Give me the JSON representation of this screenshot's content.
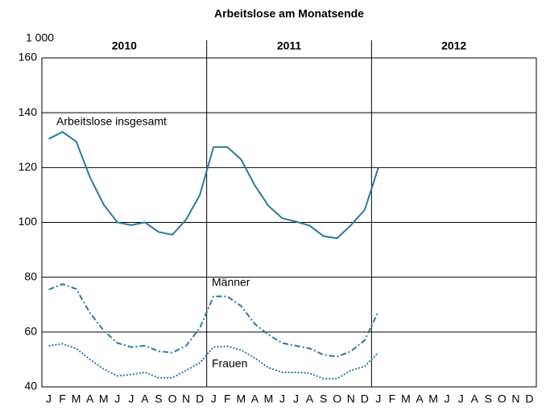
{
  "chart_data": {
    "type": "line",
    "title": "Arbeitslose am Monatsende",
    "unit_label": "1 000",
    "year_labels": [
      "2010",
      "2011",
      "2012"
    ],
    "categories": [
      "J",
      "F",
      "M",
      "A",
      "M",
      "J",
      "J",
      "A",
      "S",
      "O",
      "N",
      "D",
      "J",
      "F",
      "M",
      "A",
      "M",
      "J",
      "J",
      "A",
      "S",
      "O",
      "N",
      "D",
      "J",
      "F",
      "M",
      "A",
      "M",
      "J",
      "J",
      "A",
      "S",
      "O",
      "N",
      "D"
    ],
    "ylim": [
      40,
      160
    ],
    "yticks": [
      40,
      60,
      80,
      100,
      120,
      140,
      160
    ],
    "grid": true,
    "series": [
      {
        "name": "Arbeitslose insgesamt",
        "color": "#2a7a9b",
        "line_style": "solid",
        "values": [
          130.5,
          133,
          129.5,
          116.5,
          106.5,
          100,
          99,
          100,
          96.5,
          95.5,
          101,
          110,
          127.5,
          127.5,
          123,
          113.5,
          106,
          101.5,
          100.3,
          98.8,
          95,
          94.2,
          99,
          104.5,
          120,
          null,
          null,
          null,
          null,
          null,
          null,
          null,
          null,
          null,
          null,
          null
        ]
      },
      {
        "name": "Männer",
        "color": "#2a7a9b",
        "line_style": "dashdot",
        "values": [
          75.5,
          77.5,
          75.7,
          67,
          60.5,
          56,
          54.5,
          55,
          53,
          52.5,
          55,
          61.5,
          73,
          73,
          69.5,
          63,
          59,
          56,
          55,
          54,
          51.7,
          51,
          53,
          57,
          67.5,
          null,
          null,
          null,
          null,
          null,
          null,
          null,
          null,
          null,
          null,
          null
        ]
      },
      {
        "name": "Frauen",
        "color": "#2a7a9b",
        "line_style": "dotted",
        "values": [
          55,
          55.7,
          54,
          50,
          46.5,
          44,
          44.5,
          45.3,
          43.3,
          43.3,
          46,
          48.8,
          54.5,
          54.8,
          53.5,
          50.5,
          47,
          45.3,
          45.3,
          45,
          43,
          43,
          46,
          47.5,
          52.5,
          null,
          null,
          null,
          null,
          null,
          null,
          null,
          null,
          null,
          null,
          null
        ]
      }
    ]
  }
}
